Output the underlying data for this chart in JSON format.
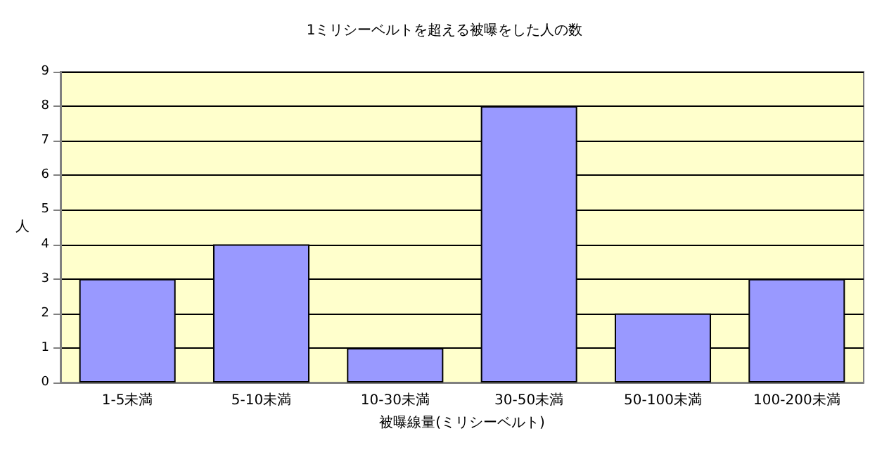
{
  "chart_data": {
    "type": "bar",
    "title": "1ミリシーベルトを超える被曝をした人の数",
    "xlabel": "被曝線量(ミリシーベルト)",
    "ylabel": "人",
    "categories": [
      "1-5未満",
      "5-10未満",
      "10-30未満",
      "30-50未満",
      "50-100未満",
      "100-200未満"
    ],
    "values": [
      3,
      4,
      1,
      8,
      2,
      3
    ],
    "color": "#9999ff",
    "ylim": [
      0,
      9
    ],
    "yticks": [
      0,
      1,
      2,
      3,
      4,
      5,
      6,
      7,
      8,
      9
    ],
    "grid": "y"
  }
}
